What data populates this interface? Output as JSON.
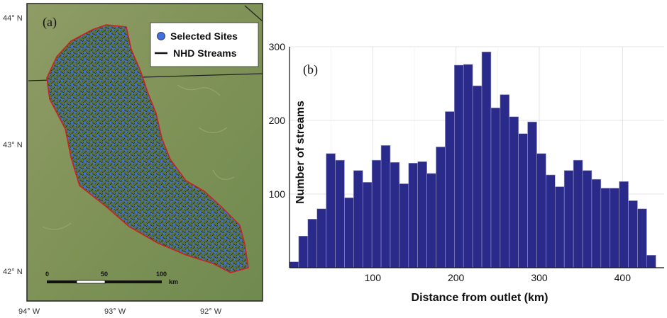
{
  "panel_a": {
    "label": "(a)",
    "legend": {
      "sites_label": "Selected Sites",
      "streams_label": "NHD Streams"
    },
    "lat_labels": [
      "44° N",
      "43° N",
      "42° N"
    ],
    "lon_labels": [
      "94° W",
      "93° W",
      "92° W"
    ],
    "scale_labels": [
      "0",
      "50",
      "100",
      "km"
    ],
    "colors": {
      "terrain": "#8a9a5e",
      "boundary": "#cc2222",
      "sites": "#3f6fe0",
      "streams": "#1a1a1a"
    }
  },
  "chart_data": {
    "type": "bar",
    "panel_label": "(b)",
    "xlabel": "Distance from outlet (km)",
    "ylabel": "Number of streams",
    "xlim": [
      0,
      450
    ],
    "ylim": [
      0,
      300
    ],
    "x_ticks": [
      100,
      200,
      300,
      400
    ],
    "y_ticks": [
      100,
      200,
      300
    ],
    "y_tick_labels": [
      "100",
      "200",
      "300"
    ],
    "bin_width": 11,
    "bin_edges_start": 0,
    "values": [
      8,
      43,
      66,
      80,
      155,
      146,
      95,
      132,
      116,
      146,
      166,
      143,
      114,
      142,
      144,
      128,
      164,
      212,
      275,
      276,
      247,
      293,
      217,
      235,
      205,
      182,
      198,
      155,
      126,
      110,
      132,
      146,
      132,
      120,
      108,
      108,
      117,
      91,
      80,
      17
    ],
    "bar_color": "#2a2a8a",
    "grid": true
  }
}
